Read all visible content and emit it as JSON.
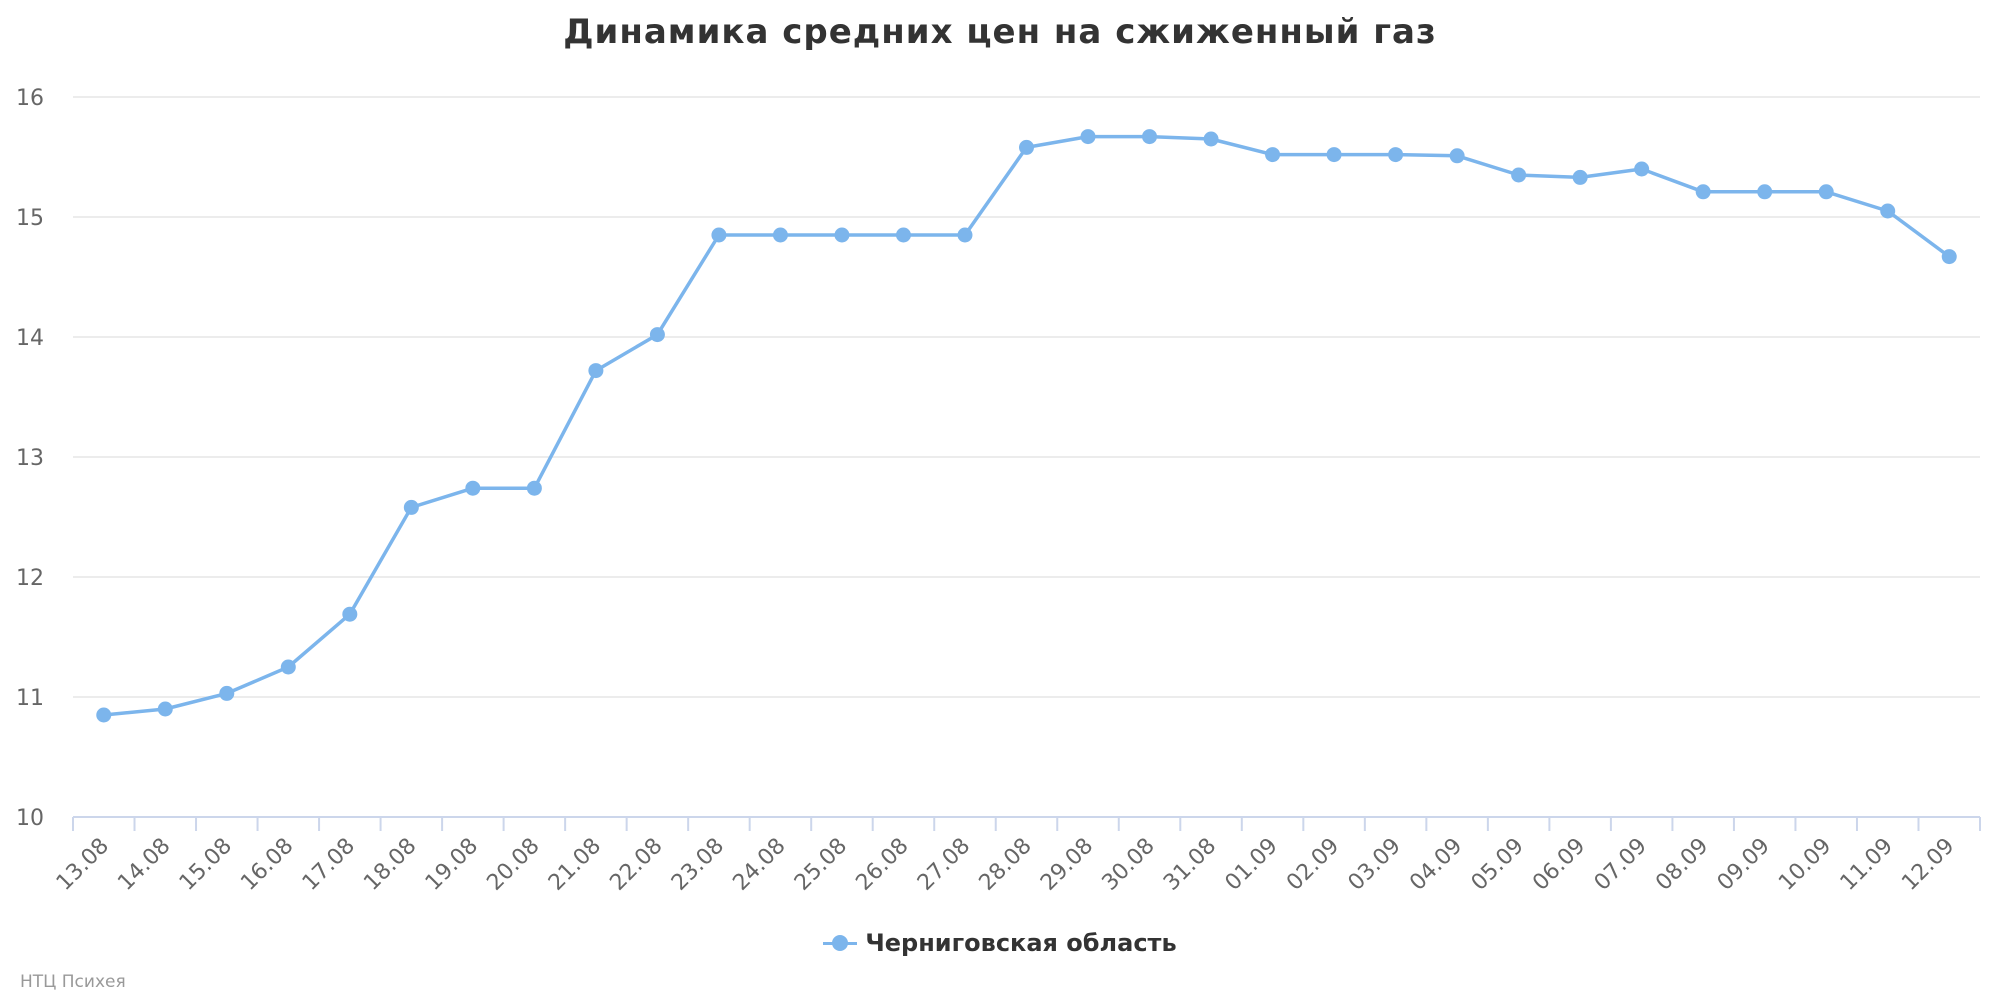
{
  "chart_data": {
    "type": "line",
    "title": "Динамика средних цен на сжиженный газ",
    "xlabel": "",
    "ylabel": "",
    "ylim": [
      10,
      16
    ],
    "yticks": [
      10,
      11,
      12,
      13,
      14,
      15,
      16
    ],
    "grid": true,
    "legend_position": "bottom-center",
    "categories": [
      "13.08",
      "14.08",
      "15.08",
      "16.08",
      "17.08",
      "18.08",
      "19.08",
      "20.08",
      "21.08",
      "22.08",
      "23.08",
      "24.08",
      "25.08",
      "26.08",
      "27.08",
      "28.08",
      "29.08",
      "30.08",
      "31.08",
      "01.09",
      "02.09",
      "03.09",
      "04.09",
      "05.09",
      "06.09",
      "07.09",
      "08.09",
      "09.09",
      "10.09",
      "11.09",
      "12.09"
    ],
    "series": [
      {
        "name": "Черниговская область",
        "color": "#7cb5ec",
        "values": [
          10.85,
          10.9,
          11.03,
          11.25,
          11.69,
          12.58,
          12.74,
          12.74,
          13.72,
          14.02,
          14.85,
          14.85,
          14.85,
          14.85,
          14.85,
          15.58,
          15.67,
          15.67,
          15.65,
          15.52,
          15.52,
          15.52,
          15.51,
          15.35,
          15.33,
          15.4,
          15.21,
          15.21,
          15.21,
          15.05,
          14.67
        ]
      }
    ]
  },
  "credit": "НТЦ Психея",
  "colors": {
    "grid": "#e6e6e6",
    "axis": "#ccd6eb",
    "text": "#333333"
  }
}
